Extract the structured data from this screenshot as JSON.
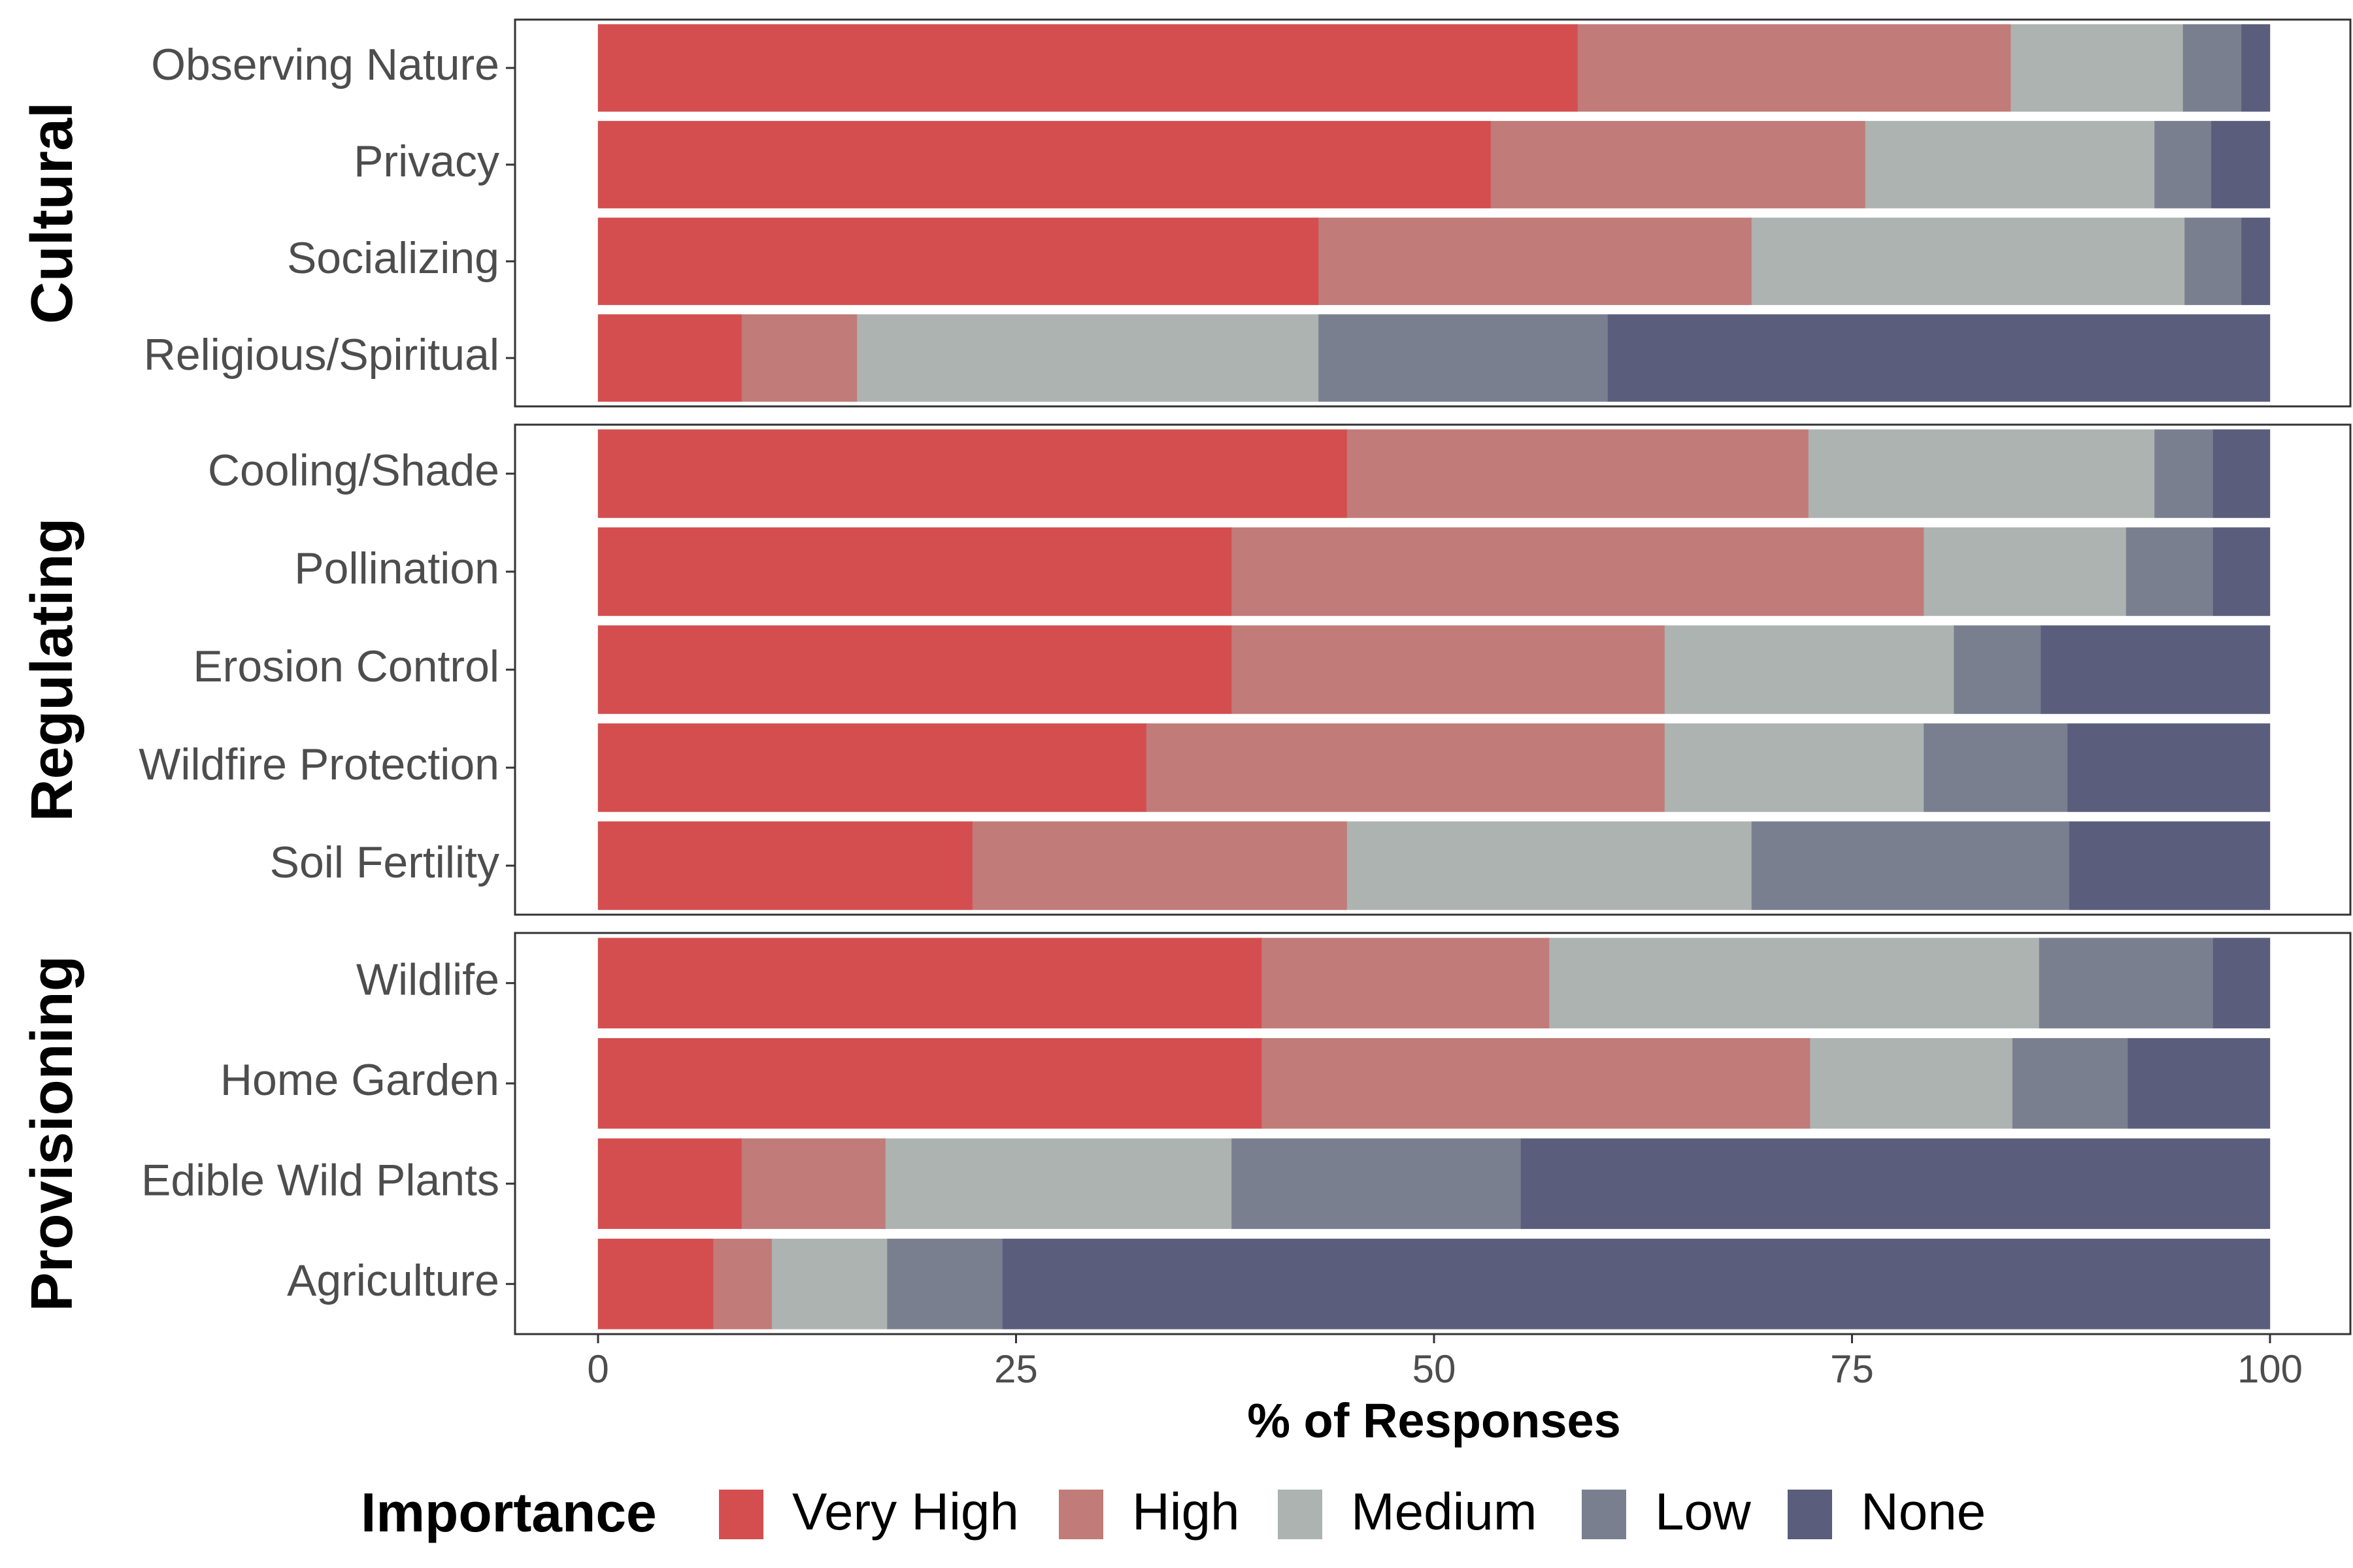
{
  "chart_data": {
    "type": "bar",
    "orientation": "horizontal",
    "stacked": true,
    "xlabel": "% of Responses",
    "xlim": [
      0,
      100
    ],
    "xticks": [
      0,
      25,
      50,
      75,
      100
    ],
    "legend": {
      "title": "Importance",
      "placement": "bottom"
    },
    "series": [
      {
        "name": "Very High",
        "color": "#d44e4f"
      },
      {
        "name": "High",
        "color": "#c17b78"
      },
      {
        "name": "Medium",
        "color": "#adb3b0"
      },
      {
        "name": "Low",
        "color": "#7a7f90"
      },
      {
        "name": "None",
        "color": "#5a5d7b"
      }
    ],
    "facets": [
      {
        "name": "Cultural",
        "categories": [
          {
            "name": "Observing Nature",
            "values": [
              58.6,
              25.9,
              10.3,
              3.5,
              1.7
            ]
          },
          {
            "name": "Privacy",
            "values": [
              53.4,
              22.4,
              17.3,
              3.4,
              3.5
            ]
          },
          {
            "name": "Socializing",
            "values": [
              43.1,
              25.9,
              25.9,
              3.4,
              1.7
            ]
          },
          {
            "name": "Religious/Spiritual",
            "values": [
              8.6,
              6.9,
              27.6,
              17.3,
              39.6
            ]
          }
        ]
      },
      {
        "name": "Regulating",
        "categories": [
          {
            "name": "Cooling/Shade",
            "values": [
              44.8,
              27.6,
              20.7,
              3.5,
              3.4
            ]
          },
          {
            "name": "Pollination",
            "values": [
              37.9,
              41.4,
              12.1,
              5.2,
              3.4
            ]
          },
          {
            "name": "Erosion Control",
            "values": [
              37.9,
              25.9,
              17.3,
              5.2,
              13.7
            ]
          },
          {
            "name": "Wildfire Protection",
            "values": [
              32.8,
              31.0,
              15.5,
              8.6,
              12.1
            ]
          },
          {
            "name": "Soil Fertility",
            "values": [
              22.4,
              22.4,
              24.2,
              19.0,
              12.0
            ]
          }
        ]
      },
      {
        "name": "Provisioning",
        "categories": [
          {
            "name": "Wildlife",
            "values": [
              39.7,
              17.2,
              29.3,
              10.4,
              3.4
            ]
          },
          {
            "name": "Home Garden",
            "values": [
              39.7,
              32.8,
              12.1,
              6.9,
              8.5
            ]
          },
          {
            "name": "Edible Wild Plants",
            "values": [
              8.6,
              8.6,
              20.7,
              17.3,
              44.8
            ]
          },
          {
            "name": "Agriculture",
            "values": [
              6.9,
              3.5,
              6.9,
              6.9,
              75.8
            ]
          }
        ]
      }
    ]
  }
}
